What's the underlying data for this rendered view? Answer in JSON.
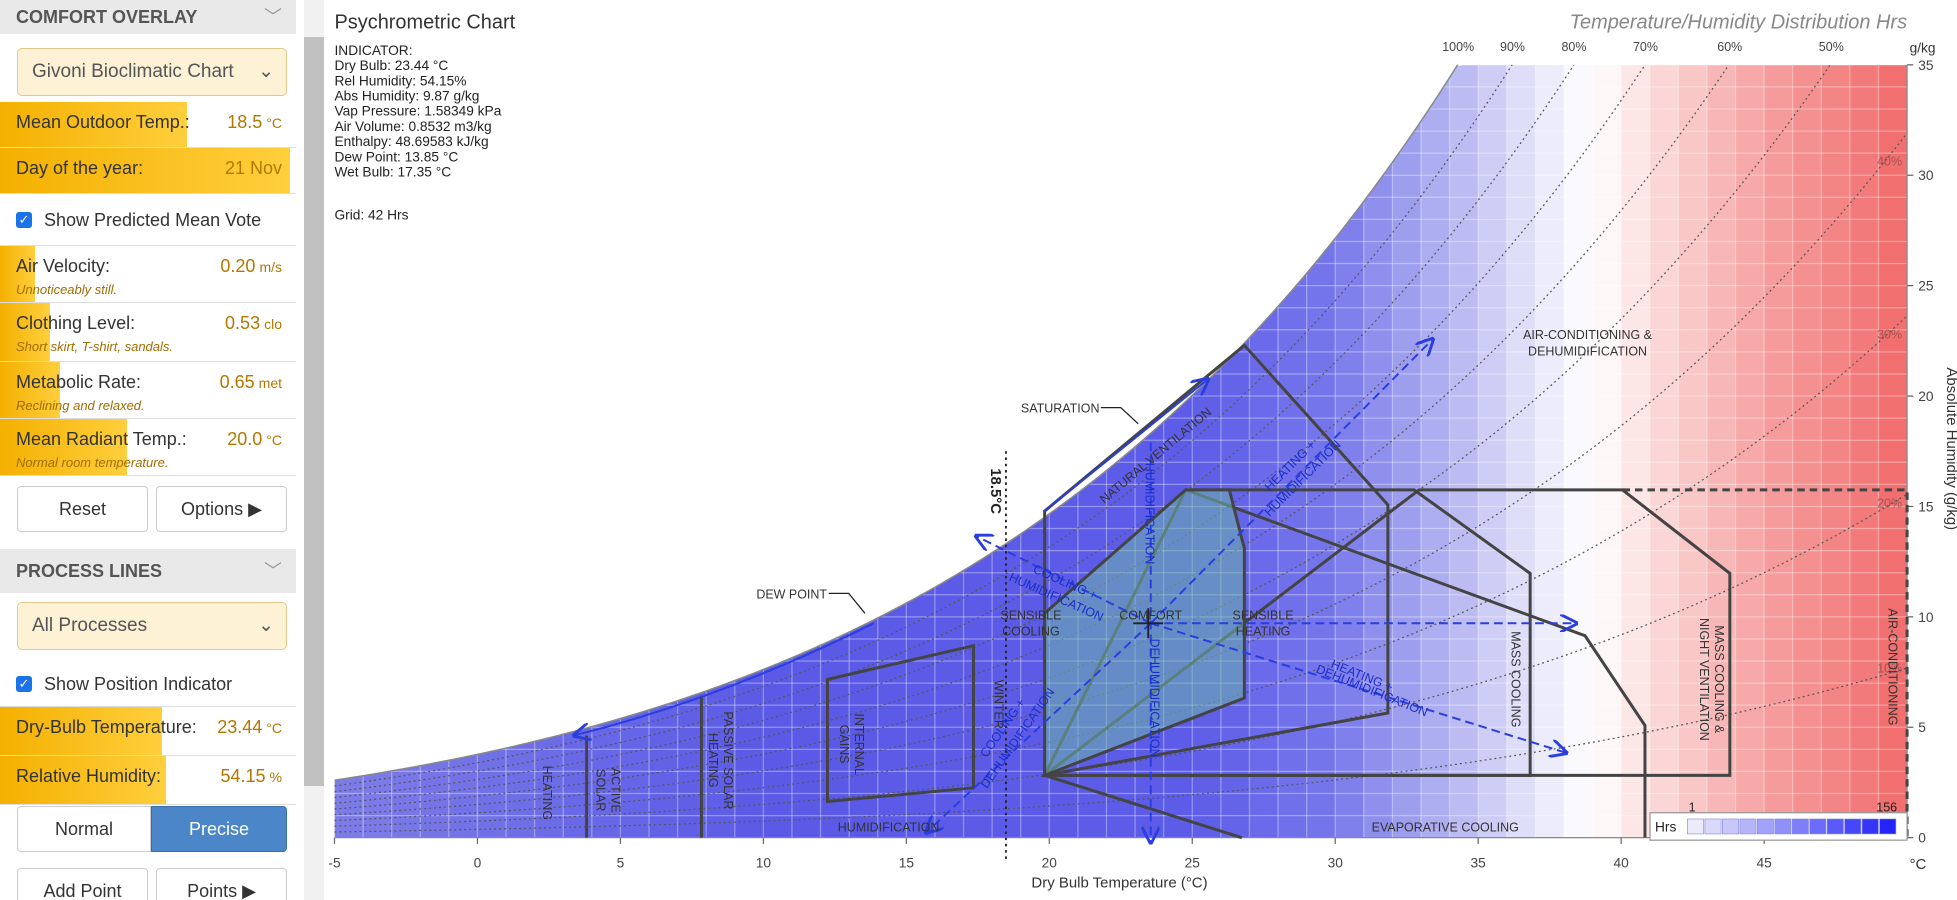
{
  "sidebar": {
    "comfort_overlay": {
      "title": "COMFORT OVERLAY",
      "chart_select": "Givoni Bioclimatic Chart",
      "sliders": [
        {
          "label": "Mean Outdoor Temp.:",
          "value": "18.5",
          "unit": "°C"
        },
        {
          "label": "Day of the year:",
          "value": "21 Nov"
        }
      ],
      "checkbox": "Show Predicted Mean Vote",
      "params": [
        {
          "label": "Air Velocity:",
          "value": "0.20",
          "unit": "m/s",
          "note": "Unnoticeably still."
        },
        {
          "label": "Clothing Level:",
          "value": "0.53",
          "unit": "clo",
          "note": "Short skirt, T-shirt, sandals."
        },
        {
          "label": "Metabolic Rate:",
          "value": "0.65",
          "unit": "met",
          "note": "Reclining and relaxed."
        },
        {
          "label": "Mean Radiant Temp.:",
          "value": "20.0",
          "unit": "°C",
          "note": "Normal room temperature."
        }
      ],
      "buttons": [
        "Reset",
        "Options ▶"
      ]
    },
    "process_lines": {
      "title": "PROCESS LINES",
      "process_select": "All Processes",
      "checkbox": "Show Position Indicator",
      "sliders": [
        {
          "label": "Dry-Bulb Temperature:",
          "value": "23.44",
          "unit": "°C"
        },
        {
          "label": "Relative Humidity:",
          "value": "54.15",
          "unit": "%"
        }
      ],
      "toggle": [
        "Normal",
        "Precise"
      ],
      "buttons": [
        "Add Point",
        "Points ▶"
      ]
    }
  },
  "chart": {
    "title": "Psychrometric Chart",
    "right_title": "Temperature/Humidity Distribution Hrs",
    "indicator": [
      "INDICATOR:",
      "Dry Bulb: 23.44 °C",
      "Rel Humidity: 54.15%",
      "Abs Humidity: 9.87 g/kg",
      "Vap Pressure: 1.58349 kPa",
      "Air Volume: 0.8532 m3/kg",
      "Enthalpy: 48.69583 kJ/kg",
      "Dew Point: 13.85 °C",
      "Wet Bulb: 17.35 °C"
    ],
    "grid_text": "Grid: 42 Hrs",
    "x_label": "Dry Bulb Temperature (°C)",
    "x_unit": "°C",
    "y_label": "Absolute Humidity (g/kg)",
    "y_unit": "g/kg",
    "xlim": [
      -5,
      50
    ],
    "xticks": [
      -5,
      0,
      5,
      10,
      15,
      20,
      25,
      30,
      35,
      40,
      45
    ],
    "ylim": [
      0,
      35
    ],
    "yticks": [
      0,
      5,
      10,
      15,
      20,
      25,
      30,
      35
    ],
    "rh_top": [
      {
        "value": 100,
        "label": "100%"
      },
      {
        "value": 90,
        "label": "90%"
      },
      {
        "value": 80,
        "label": "80%"
      },
      {
        "value": 70,
        "label": "70%"
      },
      {
        "value": 60,
        "label": "60%"
      },
      {
        "value": 50,
        "label": "50%"
      }
    ],
    "rh_side": [
      {
        "value": 40,
        "label": "40%"
      },
      {
        "value": 30,
        "label": "30%"
      },
      {
        "value": 20,
        "label": "20%"
      },
      {
        "value": 10,
        "label": "10%"
      }
    ],
    "labels": [
      "SATURATION",
      "DEW POINT",
      "AIR-CONDITIONING &",
      "DEHUMIDIFICATION",
      "NATURAL VENTILATION",
      "HUMIDIFICATION",
      "DEHUMIDIFICATION",
      "HEATING +",
      "HUMIDIFICATION",
      "COOLING +",
      "HUMIDIFICATION",
      "SENSIBLE",
      "COOLING",
      "COMFORT",
      "SENSIBLE",
      "HEATING",
      "HEATING +",
      "DEHUMIDIFICATION",
      "COOLING +",
      "DEHUMIDIFICATION",
      "MASS COOLING",
      "MASS COOLING &",
      "NIGHT VENTILATION",
      "AIR-CONDITIONING",
      "WINTER",
      "INTERNAL",
      "GAINS",
      "PASSIVE SOLAR",
      "HEATING",
      "ACTIVE",
      "SOLAR",
      "HEATING",
      "HUMIDIFICATION",
      "EVAPORATIVE COOLING",
      "18.5°C"
    ],
    "legend": {
      "title": "Hrs",
      "min": 1,
      "max": 156
    }
  }
}
